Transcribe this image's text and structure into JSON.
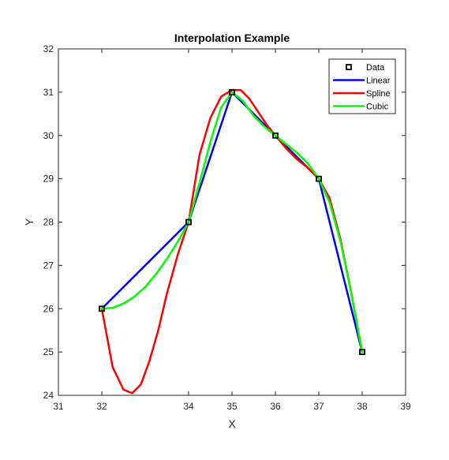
{
  "chart_data": {
    "type": "line",
    "title": "Interpolation Example",
    "xlabel": "X",
    "ylabel": "Y",
    "xlim": [
      31,
      39
    ],
    "ylim": [
      24,
      32
    ],
    "xticks": [
      31,
      32,
      34,
      35,
      36,
      37,
      38,
      39
    ],
    "xtick_labels": [
      "31",
      "32",
      "34",
      "35",
      "36",
      "37",
      "38",
      "39"
    ],
    "yticks": [
      24,
      25,
      26,
      27,
      28,
      29,
      30,
      31,
      32
    ],
    "grid": false,
    "legend_position": "top-right",
    "data_points": {
      "name": "Data",
      "x": [
        32,
        34,
        35,
        36,
        37,
        38
      ],
      "y": [
        26,
        28,
        31,
        30,
        29,
        25
      ],
      "marker": "square",
      "color": "#000000"
    },
    "series": [
      {
        "name": "Linear",
        "color": "#0000ff",
        "x": [
          32,
          34,
          35,
          36,
          37,
          38
        ],
        "y": [
          26,
          28,
          31,
          30,
          29,
          25
        ]
      },
      {
        "name": "Spline",
        "color": "#ff0000",
        "x": [
          32,
          32.25,
          32.5,
          32.7,
          32.9,
          33.1,
          33.3,
          33.5,
          33.75,
          34,
          34.25,
          34.5,
          34.75,
          35,
          35.2,
          35.4,
          35.6,
          35.8,
          36,
          36.25,
          36.5,
          36.75,
          37,
          37.25,
          37.5,
          37.75,
          38
        ],
        "y": [
          26,
          24.65,
          24.13,
          24.05,
          24.25,
          24.8,
          25.5,
          26.35,
          27.25,
          28,
          29.55,
          30.4,
          30.9,
          31.05,
          31.05,
          30.85,
          30.55,
          30.25,
          30,
          29.7,
          29.45,
          29.25,
          29,
          28.55,
          27.6,
          26.35,
          25
        ]
      },
      {
        "name": "Cubic",
        "color": "#00ff00",
        "x": [
          32,
          32.25,
          32.5,
          32.75,
          33,
          33.25,
          33.5,
          33.75,
          34,
          34.25,
          34.5,
          34.75,
          35,
          35.25,
          35.5,
          35.75,
          36,
          36.25,
          36.5,
          36.75,
          37,
          37.25,
          37.5,
          37.75,
          38
        ],
        "y": [
          26,
          26.02,
          26.12,
          26.28,
          26.5,
          26.8,
          27.15,
          27.55,
          28,
          28.9,
          29.85,
          30.65,
          31,
          30.8,
          30.45,
          30.2,
          30,
          29.8,
          29.6,
          29.35,
          29,
          28.45,
          27.55,
          26.35,
          25
        ]
      }
    ]
  }
}
